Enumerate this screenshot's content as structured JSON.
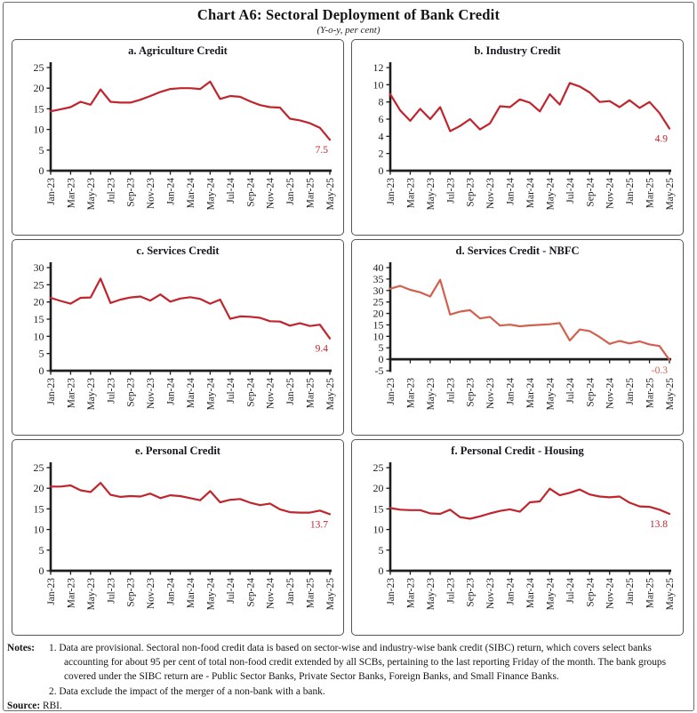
{
  "page": {
    "title": "Chart A6: Sectoral Deployment of Bank Credit",
    "subtitle": "(Y-o-y, per cent)"
  },
  "chart_data": {
    "type": "line",
    "layout": "2-column 3-row panel grid, no gridlines, no legend",
    "axis_color": "#1c1c1c",
    "x": [
      "Jan-23",
      "Feb-23",
      "Mar-23",
      "Apr-23",
      "May-23",
      "Jun-23",
      "Jul-23",
      "Aug-23",
      "Sep-23",
      "Oct-23",
      "Nov-23",
      "Dec-23",
      "Jan-24",
      "Feb-24",
      "Mar-24",
      "Apr-24",
      "May-24",
      "Jun-24",
      "Jul-24",
      "Aug-24",
      "Sep-24",
      "Oct-24",
      "Nov-24",
      "Dec-24",
      "Jan-25",
      "Feb-25",
      "Mar-25",
      "Apr-25",
      "May-25"
    ],
    "x_tick_labels": [
      "Jan-23",
      "Mar-23",
      "May-23",
      "Jul-23",
      "Sep-23",
      "Nov-23",
      "Jan-24",
      "Mar-24",
      "May-24",
      "Jul-24",
      "Sep-24",
      "Nov-24",
      "Jan-25",
      "Mar-25",
      "May-25"
    ],
    "panels": [
      {
        "id": "a",
        "title": "a. Agriculture Credit",
        "ylim": [
          0,
          25
        ],
        "yticks": [
          0,
          5,
          10,
          15,
          20,
          25
        ],
        "line_color": "#c0242c",
        "end_label": "7.5",
        "values": [
          14.4,
          14.9,
          15.4,
          16.7,
          16.0,
          19.7,
          16.7,
          16.5,
          16.5,
          17.2,
          18.1,
          19.1,
          19.8,
          20.0,
          20.0,
          19.8,
          21.6,
          17.4,
          18.1,
          17.9,
          16.8,
          15.9,
          15.4,
          15.3,
          12.6,
          12.2,
          11.5,
          10.4,
          7.5
        ]
      },
      {
        "id": "b",
        "title": "b. Industry Credit",
        "ylim": [
          0,
          12
        ],
        "yticks": [
          0,
          2,
          4,
          6,
          8,
          10,
          12
        ],
        "line_color": "#c0242c",
        "end_label": "4.9",
        "values": [
          8.9,
          7.0,
          5.8,
          7.2,
          6.0,
          7.4,
          4.6,
          5.2,
          6.0,
          4.8,
          5.5,
          7.5,
          7.4,
          8.3,
          7.9,
          6.9,
          8.9,
          7.7,
          10.2,
          9.8,
          9.1,
          8.0,
          8.1,
          7.4,
          8.2,
          7.3,
          8.0,
          6.7,
          4.9
        ]
      },
      {
        "id": "c",
        "title": "c. Services Credit",
        "ylim": [
          0,
          30
        ],
        "yticks": [
          0,
          5,
          10,
          15,
          20,
          25,
          30
        ],
        "line_color": "#c0242c",
        "end_label": "9.4",
        "values": [
          21.2,
          20.3,
          19.5,
          21.2,
          21.3,
          26.8,
          19.7,
          20.7,
          21.3,
          21.6,
          20.4,
          22.2,
          20.1,
          21.0,
          21.4,
          20.9,
          19.5,
          20.7,
          15.1,
          15.8,
          15.7,
          15.4,
          14.4,
          14.3,
          13.1,
          13.8,
          13.0,
          13.4,
          9.4
        ]
      },
      {
        "id": "d",
        "title": "d. Services Credit - NBFC",
        "ylim": [
          -5,
          40
        ],
        "yticks": [
          -5,
          0,
          5,
          10,
          15,
          20,
          25,
          30,
          35,
          40
        ],
        "line_color": "#d2604e",
        "end_label": "-0.3",
        "values": [
          30.8,
          32.0,
          30.3,
          29.2,
          27.4,
          34.7,
          19.5,
          20.8,
          21.4,
          17.8,
          18.5,
          14.7,
          15.1,
          14.4,
          14.8,
          15.0,
          15.3,
          15.8,
          8.2,
          13.0,
          12.3,
          9.7,
          6.7,
          8.0,
          6.9,
          7.8,
          6.5,
          5.8,
          -0.3
        ]
      },
      {
        "id": "e",
        "title": "e. Personal Credit",
        "ylim": [
          0,
          25
        ],
        "yticks": [
          0,
          5,
          10,
          15,
          20,
          25
        ],
        "line_color": "#c0242c",
        "end_label": "13.7",
        "values": [
          20.4,
          20.4,
          20.7,
          19.5,
          19.1,
          21.3,
          18.4,
          17.9,
          18.1,
          18.0,
          18.7,
          17.6,
          18.3,
          18.1,
          17.6,
          17.1,
          19.3,
          16.6,
          17.2,
          17.4,
          16.5,
          15.9,
          16.3,
          14.9,
          14.2,
          14.1,
          14.1,
          14.6,
          13.7
        ]
      },
      {
        "id": "f",
        "title": "f. Personal Credit - Housing",
        "ylim": [
          0,
          25
        ],
        "yticks": [
          0,
          5,
          10,
          15,
          20,
          25
        ],
        "line_color": "#c0242c",
        "end_label": "13.8",
        "values": [
          15.2,
          14.8,
          14.7,
          14.7,
          13.9,
          13.8,
          14.8,
          13.0,
          12.6,
          13.2,
          13.9,
          14.5,
          14.9,
          14.3,
          16.6,
          16.8,
          19.9,
          18.3,
          18.9,
          19.7,
          18.5,
          18.0,
          17.8,
          18.0,
          16.5,
          15.6,
          15.5,
          14.8,
          13.8
        ]
      }
    ]
  },
  "notes": {
    "label": "Notes:",
    "items": [
      "1. Data are provisional. Sectoral non-food credit data is based on sector-wise and industry-wise bank credit (SIBC) return, which covers select banks accounting for about 95 per cent of total non-food credit extended by all SCBs, pertaining to the last reporting Friday of the month. The bank groups covered under the SIBC return are - Public Sector Banks, Private Sector Banks, Foreign Banks, and Small Finance Banks.",
      "2. Data exclude the impact of the merger of a non-bank with a bank."
    ],
    "source_label": "Source:",
    "source_value": "RBI."
  }
}
